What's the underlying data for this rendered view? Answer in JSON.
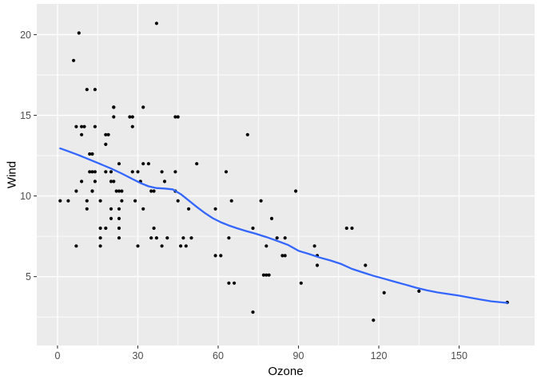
{
  "chart_data": {
    "type": "scatter",
    "title": "",
    "xlabel": "Ozone",
    "ylabel": "Wind",
    "x_ticks": [
      0,
      30,
      60,
      90,
      120,
      150
    ],
    "x_minor_ticks": [
      15,
      45,
      75,
      105,
      135,
      165
    ],
    "y_ticks": [
      5,
      10,
      15,
      20
    ],
    "y_minor_ticks": [
      2.5,
      7.5,
      12.5,
      17.5
    ],
    "xlim": [
      -7.75,
      178.2
    ],
    "ylim": [
      0.73,
      21.9
    ],
    "grid": true,
    "legend": "none",
    "panel_bg": "#EBEBEB",
    "grid_color": "#FFFFFF",
    "point_color": "#000000",
    "tick_mark_color": "#333333",
    "tick_label_color": "#4D4D4D",
    "axis_title_color": "#000000",
    "smooth_color": "#3366FF",
    "points": [
      [
        41,
        7.4
      ],
      [
        36,
        8
      ],
      [
        12,
        12.6
      ],
      [
        18,
        11.5
      ],
      [
        28,
        14.9
      ],
      [
        23,
        8.6
      ],
      [
        19,
        13.8
      ],
      [
        8,
        20.1
      ],
      [
        7,
        6.9
      ],
      [
        16,
        9.7
      ],
      [
        11,
        9.2
      ],
      [
        14,
        10.9
      ],
      [
        18,
        13.2
      ],
      [
        14,
        11.5
      ],
      [
        34,
        12
      ],
      [
        6,
        18.4
      ],
      [
        30,
        11.5
      ],
      [
        11,
        9.7
      ],
      [
        1,
        9.7
      ],
      [
        11,
        16.6
      ],
      [
        4,
        9.7
      ],
      [
        32,
        12
      ],
      [
        23,
        12
      ],
      [
        45,
        14.9
      ],
      [
        115,
        5.7
      ],
      [
        37,
        7.4
      ],
      [
        29,
        9.7
      ],
      [
        71,
        13.8
      ],
      [
        39,
        11.5
      ],
      [
        23,
        8
      ],
      [
        21,
        14.9
      ],
      [
        37,
        20.7
      ],
      [
        20,
        9.2
      ],
      [
        12,
        11.5
      ],
      [
        13,
        10.3
      ],
      [
        135,
        4.1
      ],
      [
        49,
        9.2
      ],
      [
        32,
        9.2
      ],
      [
        64,
        4.6
      ],
      [
        40,
        10.9
      ],
      [
        77,
        5.1
      ],
      [
        97,
        6.3
      ],
      [
        97,
        5.7
      ],
      [
        85,
        7.4
      ],
      [
        10,
        14.3
      ],
      [
        27,
        14.9
      ],
      [
        7,
        14.3
      ],
      [
        48,
        6.9
      ],
      [
        35,
        10.3
      ],
      [
        61,
        6.3
      ],
      [
        79,
        5.1
      ],
      [
        63,
        11.5
      ],
      [
        16,
        6.9
      ],
      [
        80,
        8.6
      ],
      [
        108,
        8
      ],
      [
        20,
        8.6
      ],
      [
        52,
        12
      ],
      [
        82,
        7.4
      ],
      [
        50,
        7.4
      ],
      [
        64,
        7.4
      ],
      [
        59,
        9.2
      ],
      [
        39,
        6.9
      ],
      [
        9,
        13.8
      ],
      [
        16,
        7.4
      ],
      [
        78,
        6.9
      ],
      [
        35,
        7.4
      ],
      [
        66,
        4.6
      ],
      [
        122,
        4
      ],
      [
        89,
        10.3
      ],
      [
        110,
        8
      ],
      [
        44,
        11.5
      ],
      [
        28,
        11.5
      ],
      [
        65,
        9.7
      ],
      [
        22,
        10.3
      ],
      [
        59,
        6.3
      ],
      [
        23,
        7.4
      ],
      [
        31,
        10.9
      ],
      [
        44,
        10.3
      ],
      [
        21,
        15.5
      ],
      [
        9,
        14.3
      ],
      [
        45,
        9.7
      ],
      [
        168,
        3.4
      ],
      [
        73,
        8
      ],
      [
        76,
        9.7
      ],
      [
        118,
        2.3
      ],
      [
        84,
        6.3
      ],
      [
        85,
        6.3
      ],
      [
        96,
        6.9
      ],
      [
        78,
        5.1
      ],
      [
        73,
        2.8
      ],
      [
        91,
        4.6
      ],
      [
        47,
        7.4
      ],
      [
        32,
        15.5
      ],
      [
        20,
        10.9
      ],
      [
        23,
        10.3
      ],
      [
        21,
        10.9
      ],
      [
        24,
        9.7
      ],
      [
        44,
        14.9
      ],
      [
        21,
        15.5
      ],
      [
        28,
        14.3
      ],
      [
        9,
        10.9
      ],
      [
        13,
        11.5
      ],
      [
        46,
        6.9
      ],
      [
        18,
        13.8
      ],
      [
        13,
        10.3
      ],
      [
        24,
        10.3
      ],
      [
        16,
        8
      ],
      [
        13,
        12.6
      ],
      [
        23,
        9.2
      ],
      [
        36,
        10.3
      ],
      [
        7,
        10.3
      ],
      [
        14,
        16.6
      ],
      [
        30,
        6.9
      ],
      [
        14,
        14.3
      ],
      [
        18,
        8
      ],
      [
        20,
        11.5
      ]
    ],
    "smooth_line": [
      [
        1,
        12.95
      ],
      [
        4,
        12.77
      ],
      [
        8,
        12.52
      ],
      [
        12,
        12.25
      ],
      [
        16,
        11.98
      ],
      [
        20,
        11.7
      ],
      [
        24,
        11.39
      ],
      [
        28,
        11.05
      ],
      [
        31,
        10.8
      ],
      [
        34,
        10.6
      ],
      [
        37,
        10.49
      ],
      [
        40,
        10.46
      ],
      [
        43,
        10.41
      ],
      [
        46,
        10.12
      ],
      [
        49,
        9.72
      ],
      [
        52,
        9.32
      ],
      [
        55,
        8.95
      ],
      [
        58,
        8.62
      ],
      [
        61,
        8.37
      ],
      [
        64,
        8.17
      ],
      [
        67,
        8.0
      ],
      [
        70,
        7.85
      ],
      [
        74,
        7.66
      ],
      [
        78,
        7.45
      ],
      [
        82,
        7.22
      ],
      [
        86,
        6.97
      ],
      [
        90,
        6.6
      ],
      [
        94,
        6.4
      ],
      [
        98,
        6.18
      ],
      [
        102,
        6.0
      ],
      [
        106,
        5.78
      ],
      [
        110,
        5.48
      ],
      [
        114,
        5.26
      ],
      [
        118,
        5.05
      ],
      [
        122,
        4.87
      ],
      [
        126,
        4.68
      ],
      [
        130,
        4.5
      ],
      [
        134,
        4.31
      ],
      [
        138,
        4.15
      ],
      [
        142,
        4.02
      ],
      [
        146,
        3.92
      ],
      [
        150,
        3.82
      ],
      [
        154,
        3.7
      ],
      [
        158,
        3.58
      ],
      [
        162,
        3.47
      ],
      [
        165,
        3.42
      ],
      [
        168,
        3.37
      ]
    ]
  }
}
